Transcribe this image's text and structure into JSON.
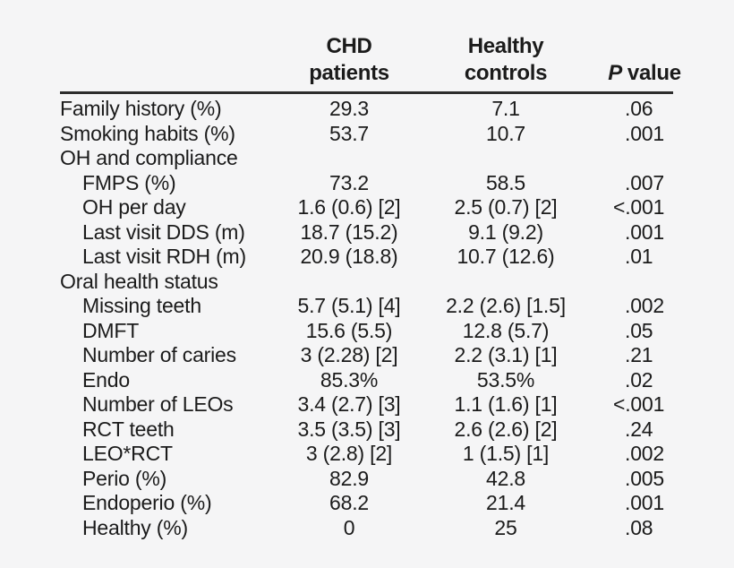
{
  "page": {
    "background_color": "#f5f5f6",
    "text_color": "#1b1b1b",
    "rule_color": "#2d2d2d"
  },
  "header": {
    "chd": "CHD patients",
    "healthy_line1": "Healthy",
    "healthy_line2": "controls",
    "p_italic": "P",
    "p_rest": "value"
  },
  "chart_data": {
    "type": "table",
    "columns": [
      "",
      "CHD patients",
      "Healthy controls",
      "P value"
    ],
    "rows": [
      {
        "label": "Family history (%)",
        "indent": false,
        "section": false,
        "chd": "29.3",
        "healthy": "7.1",
        "p": ".06"
      },
      {
        "label": "Smoking habits (%)",
        "indent": false,
        "section": false,
        "chd": "53.7",
        "healthy": "10.7",
        "p": ".001"
      },
      {
        "label": "OH and compliance",
        "indent": false,
        "section": true,
        "chd": "",
        "healthy": "",
        "p": ""
      },
      {
        "label": "FMPS (%)",
        "indent": true,
        "section": false,
        "chd": "73.2",
        "healthy": "58.5",
        "p": ".007"
      },
      {
        "label": "OH per day",
        "indent": true,
        "section": false,
        "chd": "1.6 (0.6) [2]",
        "healthy": "2.5 (0.7) [2]",
        "p": "<.001"
      },
      {
        "label": "Last visit DDS (m)",
        "indent": true,
        "section": false,
        "chd": "18.7 (15.2)",
        "healthy": "9.1 (9.2)",
        "p": ".001"
      },
      {
        "label": "Last visit RDH (m)",
        "indent": true,
        "section": false,
        "chd": "20.9 (18.8)",
        "healthy": "10.7 (12.6)",
        "p": ".01"
      },
      {
        "label": "Oral health status",
        "indent": false,
        "section": true,
        "chd": "",
        "healthy": "",
        "p": ""
      },
      {
        "label": "Missing teeth",
        "indent": true,
        "section": false,
        "chd": "5.7 (5.1) [4]",
        "healthy": "2.2 (2.6) [1.5]",
        "p": ".002"
      },
      {
        "label": "DMFT",
        "indent": true,
        "section": false,
        "chd": "15.6 (5.5)",
        "healthy": "12.8 (5.7)",
        "p": ".05"
      },
      {
        "label": "Number of caries",
        "indent": true,
        "section": false,
        "chd": "3 (2.28) [2]",
        "healthy": "2.2 (3.1) [1]",
        "p": ".21"
      },
      {
        "label": "Endo",
        "indent": true,
        "section": false,
        "chd": "85.3%",
        "healthy": "53.5%",
        "p": ".02"
      },
      {
        "label": "Number of LEOs",
        "indent": true,
        "section": false,
        "chd": "3.4 (2.7) [3]",
        "healthy": "1.1 (1.6) [1]",
        "p": "<.001"
      },
      {
        "label": "RCT teeth",
        "indent": true,
        "section": false,
        "chd": "3.5 (3.5) [3]",
        "healthy": "2.6 (2.6) [2]",
        "p": ".24"
      },
      {
        "label": "LEO*RCT",
        "indent": true,
        "section": false,
        "chd": "3 (2.8) [2]",
        "healthy": "1 (1.5) [1]",
        "p": ".002"
      },
      {
        "label": "Perio (%)",
        "indent": true,
        "section": false,
        "chd": "82.9",
        "healthy": "42.8",
        "p": ".005"
      },
      {
        "label": "Endoperio (%)",
        "indent": true,
        "section": false,
        "chd": "68.2",
        "healthy": "21.4",
        "p": ".001"
      },
      {
        "label": "Healthy (%)",
        "indent": true,
        "section": false,
        "chd": "0",
        "healthy": "25",
        "p": ".08"
      }
    ]
  }
}
